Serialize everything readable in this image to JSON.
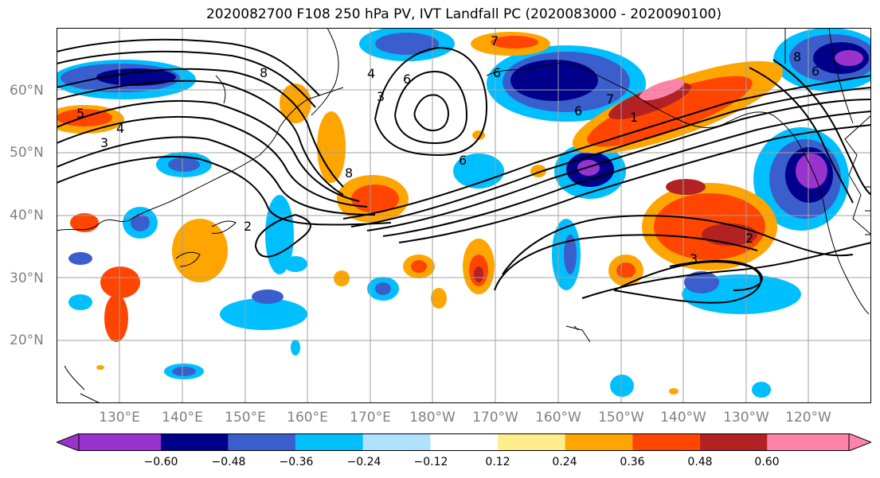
{
  "title": "2020082700 F108 250 hPa PV, IVT Landfall PC (2020083000 - 2020090100)",
  "map": {
    "lat_labels": [
      "60°N",
      "50°N",
      "40°N",
      "30°N",
      "20°N"
    ],
    "lon_labels": [
      "130°E",
      "140°E",
      "150°E",
      "160°E",
      "170°E",
      "180°W",
      "170°W",
      "160°W",
      "150°W",
      "140°W",
      "130°W",
      "120°W"
    ],
    "contour_labels": [
      "5",
      "4",
      "3",
      "4",
      "3",
      "6",
      "6",
      "8",
      "8",
      "7",
      "6",
      "2",
      "3",
      "2",
      "1",
      "7",
      "8",
      "6",
      "6"
    ]
  },
  "colorbar": {
    "ticks": [
      "−0.60",
      "−0.48",
      "−0.36",
      "−0.24",
      "−0.12",
      "0.12",
      "0.24",
      "0.36",
      "0.48",
      "0.60"
    ],
    "colors": [
      "#9a32cd",
      "#00008b",
      "#3a5fcd",
      "#00bfff",
      "#b0e2ff",
      "#ffffff",
      "#ffec8b",
      "#ffa500",
      "#ff4500",
      "#b22222",
      "#ff82ab"
    ]
  }
}
